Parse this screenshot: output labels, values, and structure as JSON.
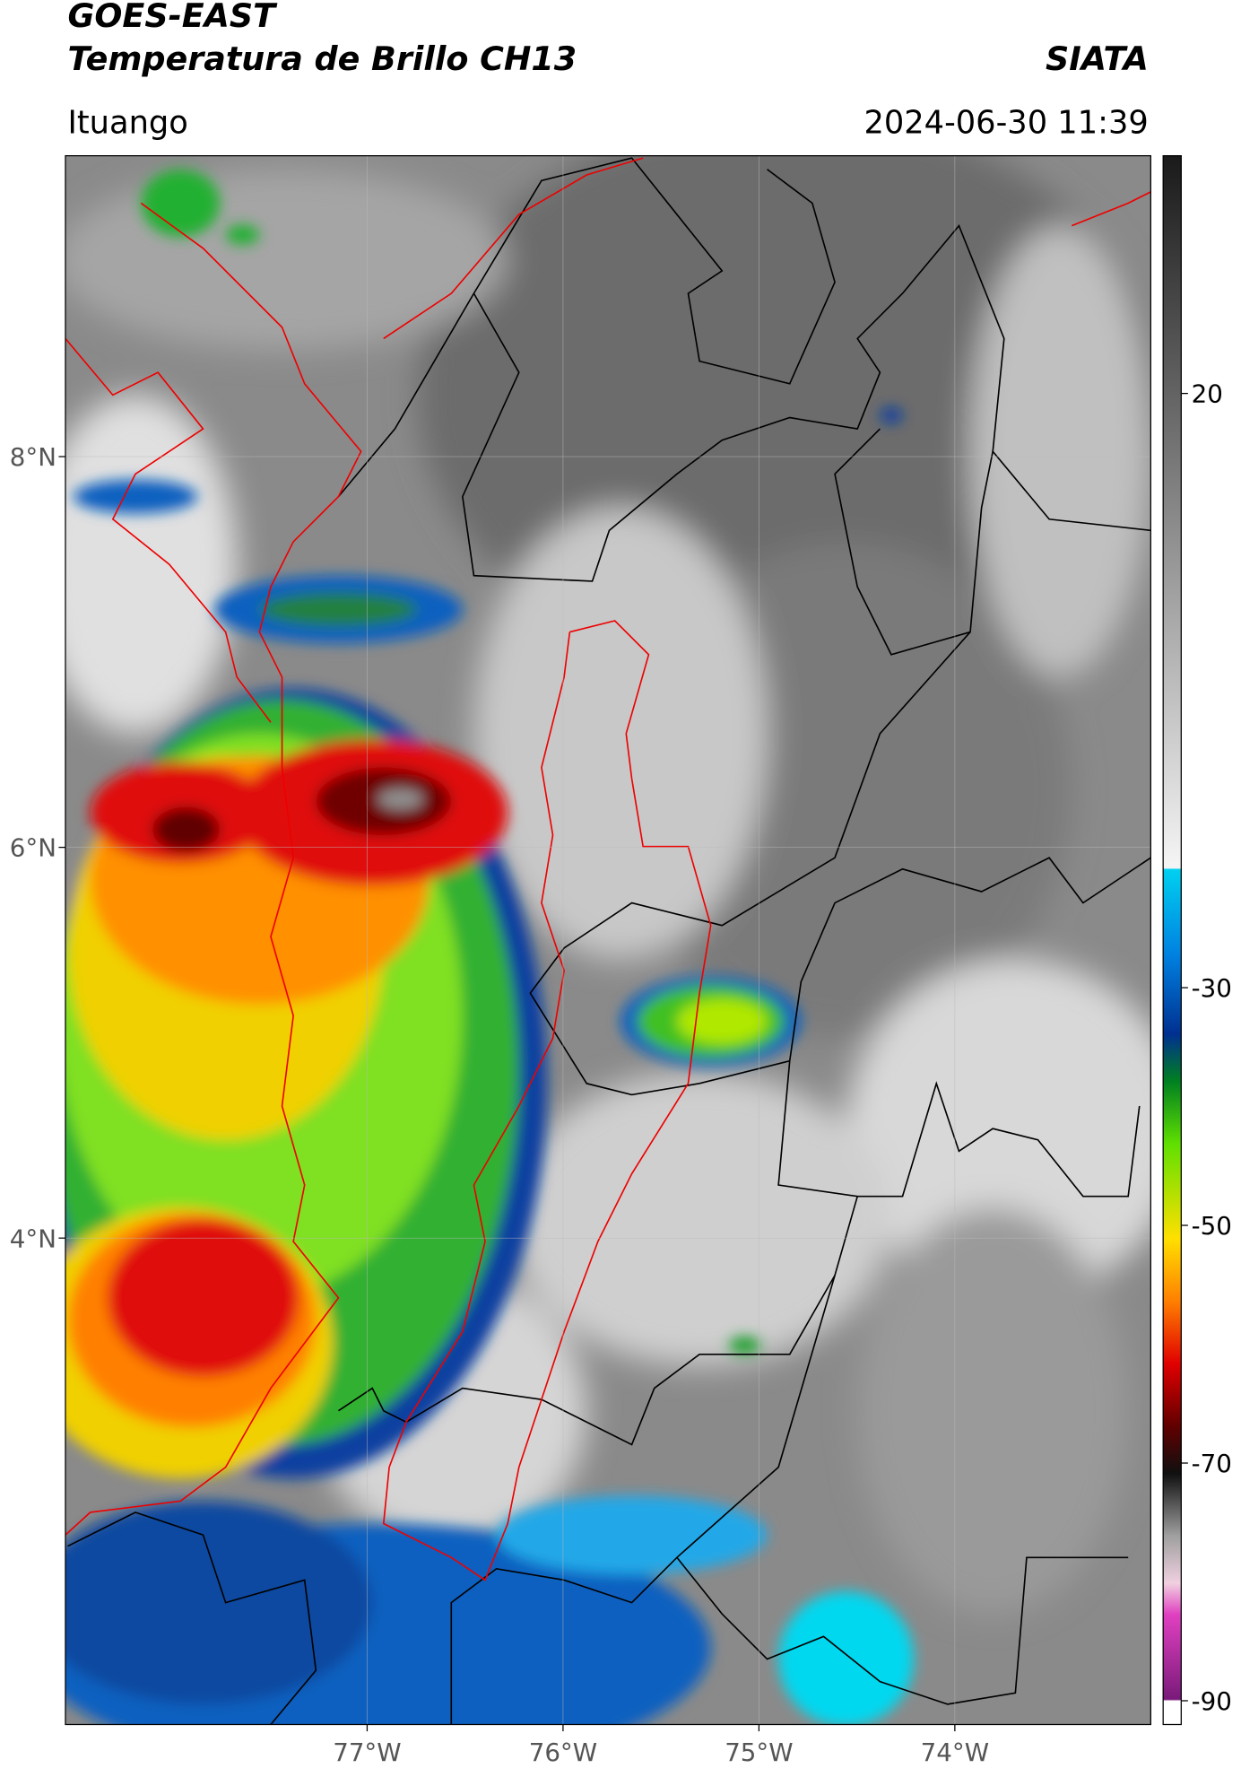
{
  "header": {
    "title_line1": "GOES-EAST",
    "title_line2": "Temperatura de Brillo CH13",
    "source": "SIATA",
    "location": "Ituango",
    "datetime": "2024-06-30 11:39"
  },
  "map": {
    "xlim": [
      -78.54,
      -73.0
    ],
    "ylim": [
      1.51,
      9.54
    ],
    "xticks": [
      {
        "value": -77,
        "label": "77°W"
      },
      {
        "value": -76,
        "label": "76°W"
      },
      {
        "value": -75,
        "label": "75°W"
      },
      {
        "value": -74,
        "label": "74°W"
      }
    ],
    "yticks": [
      {
        "value": 4,
        "label": "4°N"
      },
      {
        "value": 6,
        "label": "6°N"
      },
      {
        "value": 8,
        "label": "8°N"
      }
    ],
    "grid": true
  },
  "colorbar": {
    "lim": [
      -92,
      40
    ],
    "ticks": [
      20,
      -30,
      -50,
      -70,
      -90
    ]
  }
}
